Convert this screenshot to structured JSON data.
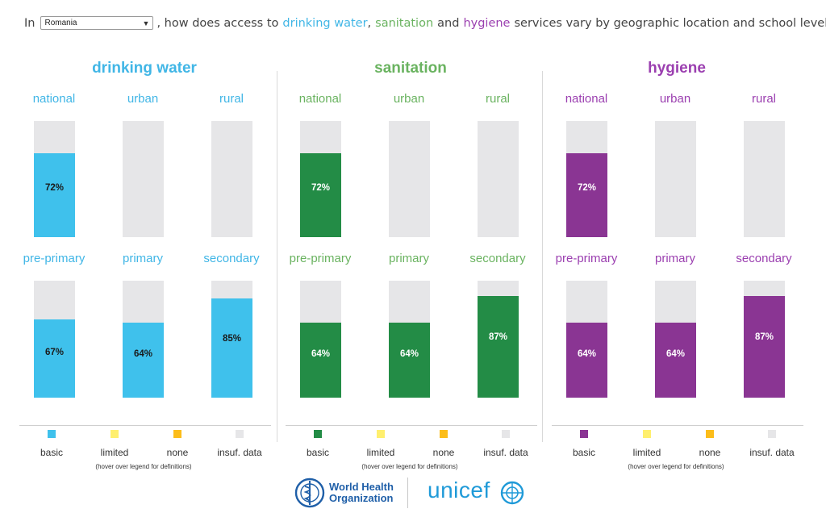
{
  "header": {
    "prefix": "In",
    "country": "Romania",
    "q_part1": ", how does access to",
    "kw_water": "drinking water",
    "sep": ",",
    "kw_san": "sanitation",
    "and": "and",
    "kw_hyg": "hygiene",
    "q_part2": "services vary by geographic location and school level?"
  },
  "colors": {
    "water": "#41b6e6",
    "sanitation": "#6ab360",
    "hygiene": "#9b3fb0",
    "water_bar": "#3fc1ec",
    "sanitation_bar": "#238c46",
    "hygiene_bar": "#8a3593",
    "insufficient": "#e6e6e8",
    "limited": "#ffef6e",
    "none": "#fcbd1a"
  },
  "legend": {
    "items": [
      "basic",
      "limited",
      "none",
      "insuf. data"
    ],
    "hint": "(hover over legend for definitions)"
  },
  "logos": {
    "who_line1": "World Health",
    "who_line2": "Organization",
    "unicef": "unicef"
  },
  "chart_data": [
    {
      "type": "bar",
      "title": "drinking water",
      "categories": [
        "national",
        "urban",
        "rural"
      ],
      "values": [
        72,
        null,
        null
      ],
      "labels": [
        "72%",
        "",
        ""
      ]
    },
    {
      "type": "bar",
      "title": "drinking water",
      "categories": [
        "pre-primary",
        "primary",
        "secondary"
      ],
      "values": [
        67,
        64,
        85
      ],
      "labels": [
        "67%",
        "64%",
        "85%"
      ]
    },
    {
      "type": "bar",
      "title": "sanitation",
      "categories": [
        "national",
        "urban",
        "rural"
      ],
      "values": [
        72,
        null,
        null
      ],
      "labels": [
        "72%",
        "",
        ""
      ]
    },
    {
      "type": "bar",
      "title": "sanitation",
      "categories": [
        "pre-primary",
        "primary",
        "secondary"
      ],
      "values": [
        64,
        64,
        87
      ],
      "labels": [
        "64%",
        "64%",
        "87%"
      ]
    },
    {
      "type": "bar",
      "title": "hygiene",
      "categories": [
        "national",
        "urban",
        "rural"
      ],
      "values": [
        72,
        null,
        null
      ],
      "labels": [
        "72%",
        "",
        ""
      ]
    },
    {
      "type": "bar",
      "title": "hygiene",
      "categories": [
        "pre-primary",
        "primary",
        "secondary"
      ],
      "values": [
        64,
        64,
        87
      ],
      "labels": [
        "64%",
        "64%",
        "87%"
      ]
    }
  ]
}
